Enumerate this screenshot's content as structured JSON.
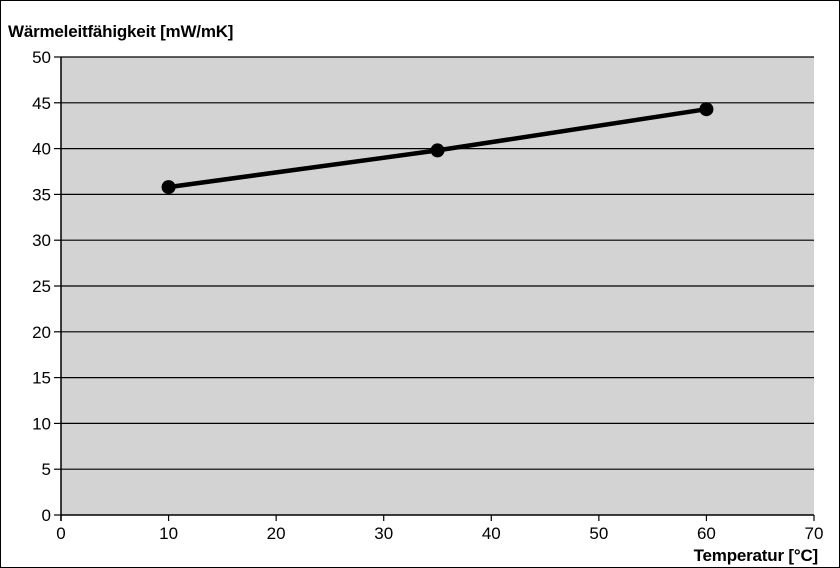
{
  "chart_data": {
    "type": "line",
    "ylabel": "Wärmeleitfähigkeit [mW/mK]",
    "xlabel": "Temperatur [°C]",
    "xlim": [
      0,
      70
    ],
    "ylim": [
      0,
      50
    ],
    "x_ticks": [
      0,
      10,
      20,
      30,
      40,
      50,
      60,
      70
    ],
    "y_ticks": [
      0,
      5,
      10,
      15,
      20,
      25,
      30,
      35,
      40,
      45,
      50
    ],
    "grid": "horizontal",
    "colors": {
      "plot_background": "#d3d3d3",
      "line": "#000000",
      "grid": "#000000"
    },
    "series": [
      {
        "x": [
          10,
          35,
          60
        ],
        "y": [
          35.8,
          39.8,
          44.3
        ]
      }
    ]
  }
}
